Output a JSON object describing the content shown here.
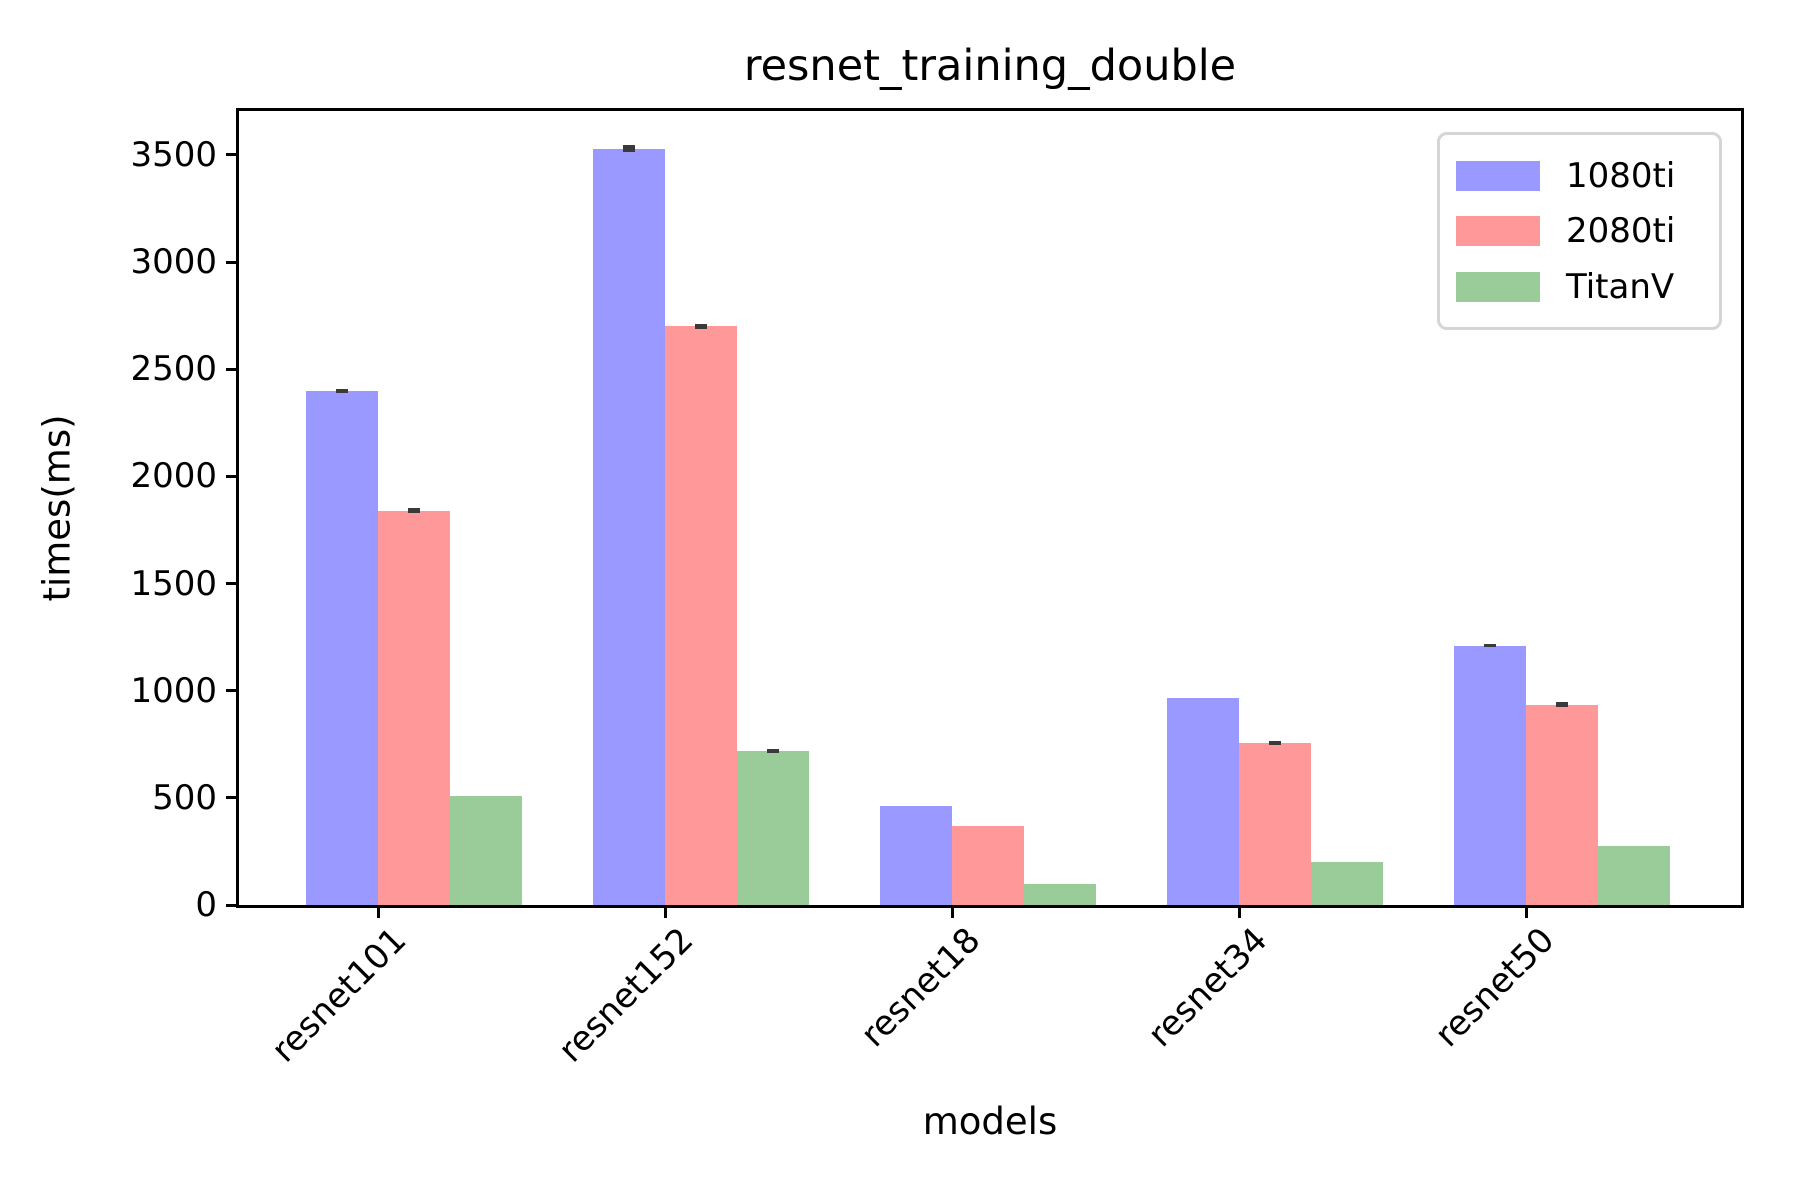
{
  "title": "resnet_training_double",
  "chart_data": {
    "type": "bar",
    "title": "resnet_training_double",
    "xlabel": "models",
    "ylabel": "times(ms)",
    "categories": [
      "resnet101",
      "resnet152",
      "resnet18",
      "resnet34",
      "resnet50"
    ],
    "series": [
      {
        "name": "1080ti",
        "color": "#9999ff",
        "values": [
          2400,
          3530,
          462,
          965,
          1210
        ],
        "errors": [
          10,
          15,
          0,
          0,
          8
        ]
      },
      {
        "name": "2080ti",
        "color": "#ff9999",
        "values": [
          1840,
          2700,
          368,
          755,
          935
        ],
        "errors": [
          12,
          12,
          0,
          10,
          10
        ]
      },
      {
        "name": "TitanV",
        "color": "#99cc99",
        "values": [
          510,
          720,
          100,
          200,
          275
        ],
        "errors": [
          0,
          10,
          0,
          0,
          0
        ]
      }
    ],
    "ylim": [
      0,
      3705
    ],
    "yticks": [
      0,
      500,
      1000,
      1500,
      2000,
      2500,
      3000,
      3500
    ],
    "ytick_labels": [
      "0",
      "500",
      "1000",
      "1500",
      "2000",
      "2500",
      "3000",
      "3500"
    ],
    "grid": false,
    "legend_position": "upper right",
    "xtick_rotation_deg": 45
  },
  "colors": {
    "axis": "#000000",
    "error_bar": "#3a3a3a",
    "legend_border": "#d5d5d5",
    "background": "#ffffff"
  }
}
